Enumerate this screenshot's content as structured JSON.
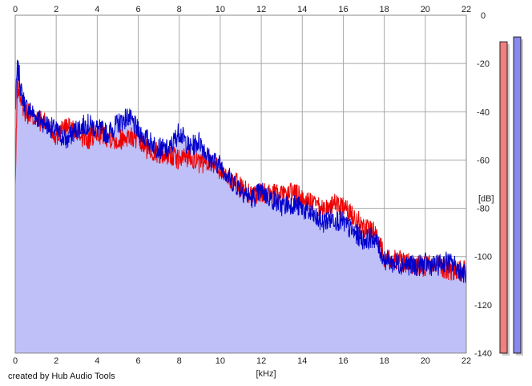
{
  "chart_data": {
    "type": "area",
    "xlabel": "[kHz]",
    "ylabel": "[dB]",
    "xlim": [
      0,
      22
    ],
    "ylim": [
      -140,
      0
    ],
    "xticks": [
      0,
      2,
      4,
      6,
      8,
      10,
      12,
      14,
      16,
      18,
      20,
      22
    ],
    "yticks": [
      0,
      -20,
      -40,
      -60,
      -80,
      -100,
      -120,
      -140
    ],
    "grid": true,
    "colors": {
      "fill": "#c0c0f8",
      "blue": "#0000cc",
      "red": "#ee0000",
      "grid": "#a8a8a8",
      "meter_left": "#f08080",
      "meter_right": "#8888ee"
    },
    "series": [
      {
        "color": "blue",
        "x": [
          0,
          0.1,
          0.2,
          0.3,
          0.5,
          0.8,
          1,
          1.5,
          2,
          2.5,
          3,
          3.5,
          4,
          4.5,
          5,
          5.5,
          6,
          6.5,
          7,
          7.5,
          8,
          8.5,
          9,
          9.5,
          10,
          10.5,
          11,
          11.5,
          12,
          12.5,
          13,
          13.5,
          14,
          14.5,
          15,
          15.5,
          16,
          16.5,
          17,
          17.5,
          18,
          18.5,
          19,
          19.5,
          20,
          20.5,
          21,
          21.5,
          22
        ],
        "y": [
          -40,
          -22,
          -25,
          -32,
          -38,
          -40,
          -42,
          -45,
          -48,
          -52,
          -47,
          -45,
          -47,
          -49,
          -45,
          -42,
          -48,
          -52,
          -55,
          -56,
          -48,
          -55,
          -52,
          -60,
          -62,
          -68,
          -72,
          -76,
          -73,
          -76,
          -79,
          -78,
          -80,
          -83,
          -86,
          -84,
          -86,
          -90,
          -93,
          -92,
          -101,
          -103,
          -103,
          -104,
          -103,
          -104,
          -102,
          -104,
          -108
        ]
      },
      {
        "color": "red",
        "x": [
          0,
          0.1,
          0.2,
          0.3,
          0.5,
          0.8,
          1,
          1.5,
          2,
          2.5,
          3,
          3.5,
          4,
          4.5,
          5,
          5.5,
          6,
          6.5,
          7,
          7.5,
          8,
          8.5,
          9,
          9.5,
          10,
          10.5,
          11,
          11.5,
          12,
          12.5,
          13,
          13.5,
          14,
          14.5,
          15,
          15.5,
          16,
          16.5,
          17,
          17.5,
          18,
          18.5,
          19,
          19.5,
          20,
          20.5,
          21,
          21.5,
          22
        ],
        "y": [
          -72,
          -30,
          -32,
          -36,
          -40,
          -42,
          -43,
          -45,
          -50,
          -46,
          -48,
          -52,
          -49,
          -50,
          -52,
          -50,
          -52,
          -56,
          -57,
          -58,
          -60,
          -58,
          -62,
          -60,
          -64,
          -68,
          -71,
          -74,
          -74,
          -74,
          -75,
          -73,
          -76,
          -78,
          -81,
          -78,
          -80,
          -83,
          -88,
          -89,
          -100,
          -101,
          -102,
          -104,
          -104,
          -103,
          -105,
          -106,
          -106
        ]
      }
    ],
    "meters": [
      {
        "channel": "left",
        "level_db": -11
      },
      {
        "channel": "right",
        "level_db": -9
      }
    ],
    "credit": "created by Hub Audio Tools"
  }
}
